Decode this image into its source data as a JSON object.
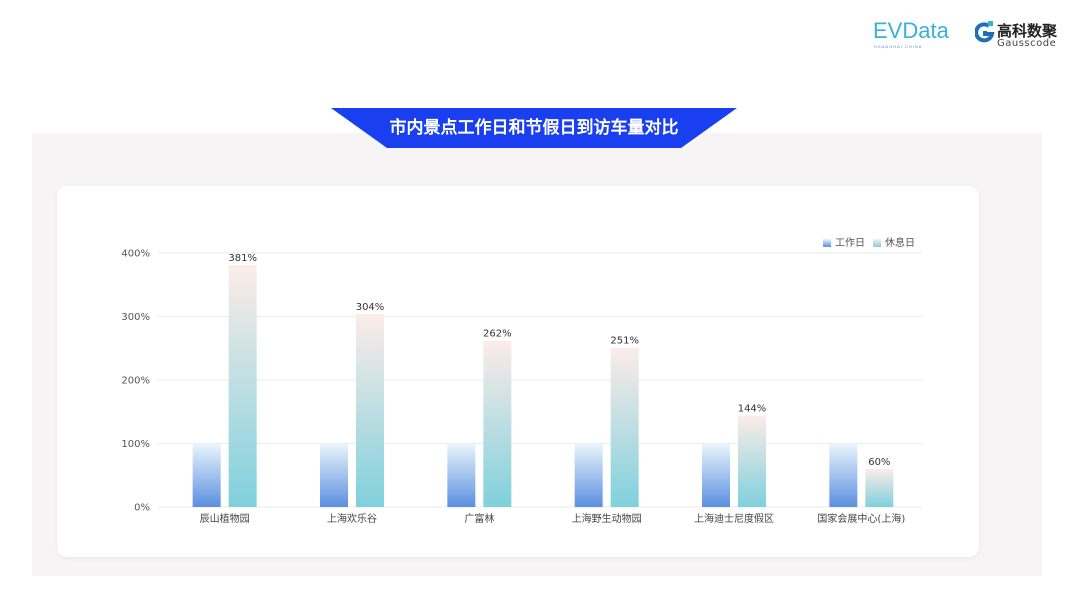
{
  "header": {
    "title": "市内景点工作日和节假日到访车量对比",
    "logo_evdata": "EVData",
    "logo_evdata_sub": "SHANGHAI CHINA",
    "logo_gauss_cn": "高科数聚",
    "logo_gauss_en": "Gausscode"
  },
  "colors": {
    "banner": "#1a3ff0",
    "workday_top": "#eaf6fc",
    "workday_bottom": "#5b8fe0",
    "holiday_top": "#fcece8",
    "holiday_bottom": "#7fd0dc"
  },
  "chart_data": {
    "type": "bar",
    "title": "市内景点工作日和节假日到访车量对比",
    "categories": [
      "辰山植物园",
      "上海欢乐谷",
      "广富林",
      "上海野生动物园",
      "上海迪士尼度假区",
      "国家会展中心(上海)"
    ],
    "series": [
      {
        "name": "工作日",
        "values": [
          100,
          100,
          100,
          100,
          100,
          100
        ]
      },
      {
        "name": "休息日",
        "values": [
          381,
          304,
          262,
          251,
          144,
          60
        ]
      }
    ],
    "data_labels": [
      "381%",
      "304%",
      "262%",
      "251%",
      "144%",
      "60%"
    ],
    "yticks": [
      "0%",
      "100%",
      "200%",
      "300%",
      "400%"
    ],
    "ylim": [
      0,
      400
    ],
    "grid": true,
    "legend": "top-right"
  }
}
